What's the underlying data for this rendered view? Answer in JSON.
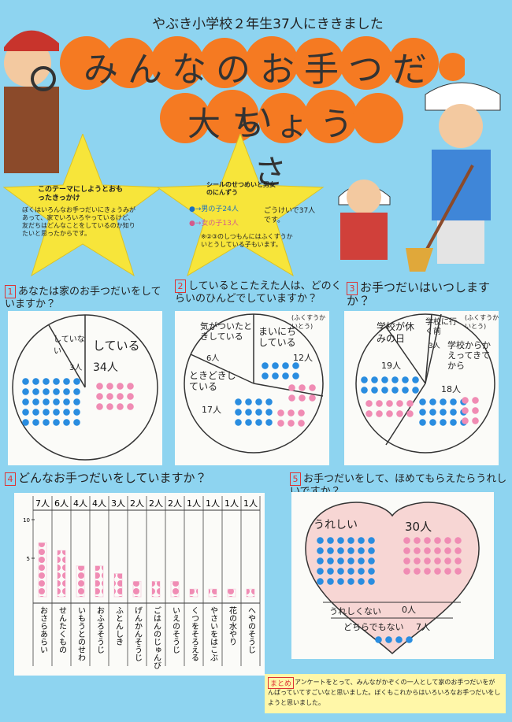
{
  "header": {
    "subtitle": "やぶき小学校２年生37人にききました",
    "title_line1": "みんなのお手つだい",
    "title_line2": "大ちょうさ"
  },
  "reason": {
    "title": "このテーマにしようとおもったきっかけ",
    "body": "ぼくはいろんなお手つだいにきょうみがあって、家でいろいろやっているけど、友だちはどんなことをしているのか知りたいと思ったからです。"
  },
  "legend": {
    "title": "シールのせつめいと男女のにんずう",
    "boys": "●→男の子24人",
    "girls": "●→女の子13人",
    "total": "ごうけいで37人です。",
    "note": "※②③のしつもんにはふくすうかいとうしている子もいます。"
  },
  "q1": {
    "number": "1",
    "question": "あなたは家のお手つだいをしていますか？",
    "slices": [
      {
        "label": "していない",
        "count": "3人"
      },
      {
        "label": "している",
        "count": "34人"
      }
    ]
  },
  "q2": {
    "number": "2",
    "question": "しているとこたえた人は、どのくらいのひんどでしていますか？",
    "note": "(ふくすうかいとう)",
    "slices": [
      {
        "label": "気がついたときしている",
        "count": "6人"
      },
      {
        "label": "まいにちしている",
        "count": "12人"
      },
      {
        "label": "ときどきしている",
        "count": "17人"
      }
    ]
  },
  "q3": {
    "number": "3",
    "question": "お手つだいはいつしますか？",
    "note": "(ふくすうかいとう)",
    "slices": [
      {
        "label": "学校が休みの日",
        "count": "19人"
      },
      {
        "label": "学校に行く前",
        "count": "3人"
      },
      {
        "label": "学校からかえってきてから",
        "count": "18人"
      }
    ]
  },
  "q5": {
    "number": "5",
    "question": "お手つだいをして、ほめてもらえたらうれしいですか？",
    "answers": [
      {
        "label": "うれしい",
        "count": "30人"
      },
      {
        "label": "うれしくない",
        "count": "0人"
      },
      {
        "label": "どちらでもない",
        "count": "7人"
      }
    ]
  },
  "summary": {
    "label": "まとめ",
    "body": "アンケートをとって、みんながかぞくの一人として家のお手つだいをがんばっていてすごいなと思いました。ぼくもこれからはいろいろなお手つだいをしようと思いました。"
  },
  "chart_data": {
    "type": "bar",
    "number": "4",
    "title": "どんなお手つだいをしていますか？",
    "categories": [
      "おさらあらい",
      "せんたくもの",
      "いもうとのせわ",
      "おふろそうじ",
      "ふとんしき",
      "げんかんそうじ",
      "ごはんのじゅんび",
      "いえのそうじ",
      "くつをそろえる",
      "やさいをはこぶ",
      "花の水やり",
      "へやのそうじ"
    ],
    "values": [
      7,
      6,
      4,
      4,
      3,
      2,
      2,
      2,
      1,
      1,
      1,
      1
    ],
    "value_labels": [
      "7人",
      "6人",
      "4人",
      "4人",
      "3人",
      "2人",
      "2人",
      "2人",
      "1人",
      "1人",
      "1人",
      "1人"
    ],
    "color": "#f08cb4",
    "ylim": [
      0,
      10
    ],
    "yticks": [
      5,
      10
    ]
  }
}
